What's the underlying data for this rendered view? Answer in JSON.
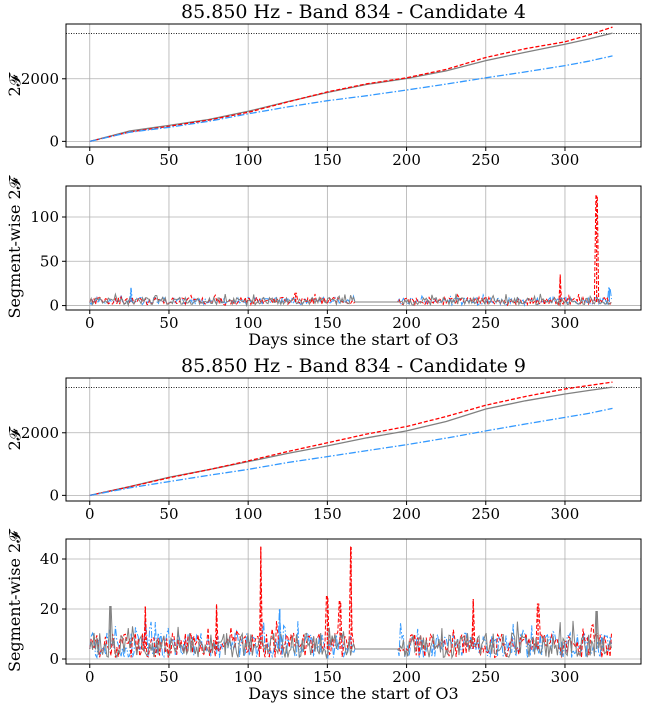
{
  "chart_data": [
    {
      "type": "line",
      "panel": "cumulative",
      "title": "85.850 Hz - Band 834 - Candidate 4",
      "ylabel": "2𝓕",
      "xlabel": "",
      "xlim": [
        -15,
        348
      ],
      "ylim": [
        -180,
        3750
      ],
      "xticks": [
        0,
        50,
        100,
        150,
        200,
        250,
        300
      ],
      "yticks": [
        0,
        2000
      ],
      "grid": true,
      "threshold": 3450,
      "series": [
        {
          "style": "solid",
          "color": "#808080",
          "x": [
            0,
            25,
            50,
            75,
            100,
            125,
            150,
            175,
            200,
            225,
            250,
            275,
            300,
            315,
            330
          ],
          "y": [
            0,
            330,
            510,
            700,
            960,
            1270,
            1560,
            1820,
            2010,
            2250,
            2580,
            2850,
            3100,
            3270,
            3460
          ]
        },
        {
          "style": "dashed",
          "color": "#ff0000",
          "x": [
            0,
            25,
            50,
            75,
            100,
            125,
            150,
            175,
            200,
            225,
            250,
            275,
            300,
            315,
            330
          ],
          "y": [
            0,
            300,
            480,
            680,
            930,
            1260,
            1580,
            1840,
            2030,
            2300,
            2680,
            2960,
            3180,
            3400,
            3650
          ]
        },
        {
          "style": "dashdot",
          "color": "#3399ff",
          "x": [
            0,
            25,
            50,
            75,
            100,
            125,
            150,
            175,
            200,
            225,
            250,
            275,
            300,
            315,
            330
          ],
          "y": [
            0,
            290,
            450,
            640,
            880,
            1100,
            1300,
            1460,
            1640,
            1830,
            2030,
            2220,
            2420,
            2560,
            2730
          ]
        }
      ]
    },
    {
      "type": "line",
      "panel": "segment",
      "title": "",
      "ylabel": "Segment-wise 2𝓕",
      "xlabel": "Days since the start of O3",
      "xlim": [
        -15,
        348
      ],
      "ylim": [
        -5,
        135
      ],
      "xticks": [
        0,
        50,
        100,
        150,
        200,
        250,
        300
      ],
      "yticks": [
        0,
        50,
        100
      ],
      "grid": true,
      "data_gap": [
        167,
        195
      ],
      "baseline": 4,
      "peaks": [
        {
          "x": 26,
          "y": 20,
          "color": "#3399ff"
        },
        {
          "x": 130,
          "y": 14,
          "color": "#ff0000"
        },
        {
          "x": 297,
          "y": 35,
          "color": "#ff0000"
        },
        {
          "x": 320,
          "y": 124,
          "color": "#ff0000"
        },
        {
          "x": 328,
          "y": 20,
          "color": "#3399ff"
        }
      ]
    },
    {
      "type": "line",
      "panel": "cumulative",
      "title": "85.850 Hz - Band 834 - Candidate 9",
      "ylabel": "2𝓕",
      "xlabel": "",
      "xlim": [
        -15,
        348
      ],
      "ylim": [
        -180,
        3750
      ],
      "xticks": [
        0,
        50,
        100,
        150,
        200,
        250,
        300
      ],
      "yticks": [
        0,
        2000
      ],
      "grid": true,
      "threshold": 3450,
      "series": [
        {
          "style": "solid",
          "color": "#808080",
          "x": [
            0,
            25,
            50,
            75,
            100,
            125,
            150,
            175,
            200,
            225,
            250,
            275,
            300,
            315,
            330
          ],
          "y": [
            0,
            280,
            580,
            820,
            1080,
            1340,
            1580,
            1840,
            2060,
            2360,
            2760,
            3020,
            3240,
            3350,
            3460
          ]
        },
        {
          "style": "dashed",
          "color": "#ff0000",
          "x": [
            0,
            25,
            50,
            75,
            100,
            125,
            150,
            175,
            200,
            225,
            250,
            275,
            300,
            315,
            330
          ],
          "y": [
            0,
            270,
            560,
            820,
            1100,
            1400,
            1680,
            1960,
            2200,
            2520,
            2880,
            3160,
            3400,
            3510,
            3620
          ]
        },
        {
          "style": "dashdot",
          "color": "#3399ff",
          "x": [
            0,
            25,
            50,
            75,
            100,
            125,
            150,
            175,
            200,
            225,
            250,
            275,
            300,
            315,
            330
          ],
          "y": [
            0,
            240,
            440,
            640,
            830,
            1050,
            1240,
            1430,
            1620,
            1830,
            2060,
            2280,
            2490,
            2620,
            2780
          ]
        }
      ]
    },
    {
      "type": "line",
      "panel": "segment",
      "title": "",
      "ylabel": "Segment-wise 2𝓕",
      "xlabel": "Days since the start of O3",
      "xlim": [
        -15,
        348
      ],
      "ylim": [
        -2,
        48
      ],
      "xticks": [
        0,
        50,
        100,
        150,
        200,
        250,
        300
      ],
      "yticks": [
        0,
        20,
        40
      ],
      "grid": true,
      "data_gap": [
        167,
        195
      ],
      "baseline": 4,
      "peaks": [
        {
          "x": 13,
          "y": 21,
          "color": "#808080"
        },
        {
          "x": 35,
          "y": 21,
          "color": "#ff0000"
        },
        {
          "x": 80,
          "y": 22,
          "color": "#ff0000"
        },
        {
          "x": 108,
          "y": 45,
          "color": "#ff0000"
        },
        {
          "x": 120,
          "y": 20,
          "color": "#3399ff"
        },
        {
          "x": 150,
          "y": 25,
          "color": "#ff0000"
        },
        {
          "x": 158,
          "y": 23,
          "color": "#ff0000"
        },
        {
          "x": 165,
          "y": 45,
          "color": "#ff0000"
        },
        {
          "x": 242,
          "y": 24,
          "color": "#ff0000"
        },
        {
          "x": 283,
          "y": 22,
          "color": "#ff0000"
        },
        {
          "x": 320,
          "y": 19,
          "color": "#808080"
        }
      ]
    }
  ]
}
